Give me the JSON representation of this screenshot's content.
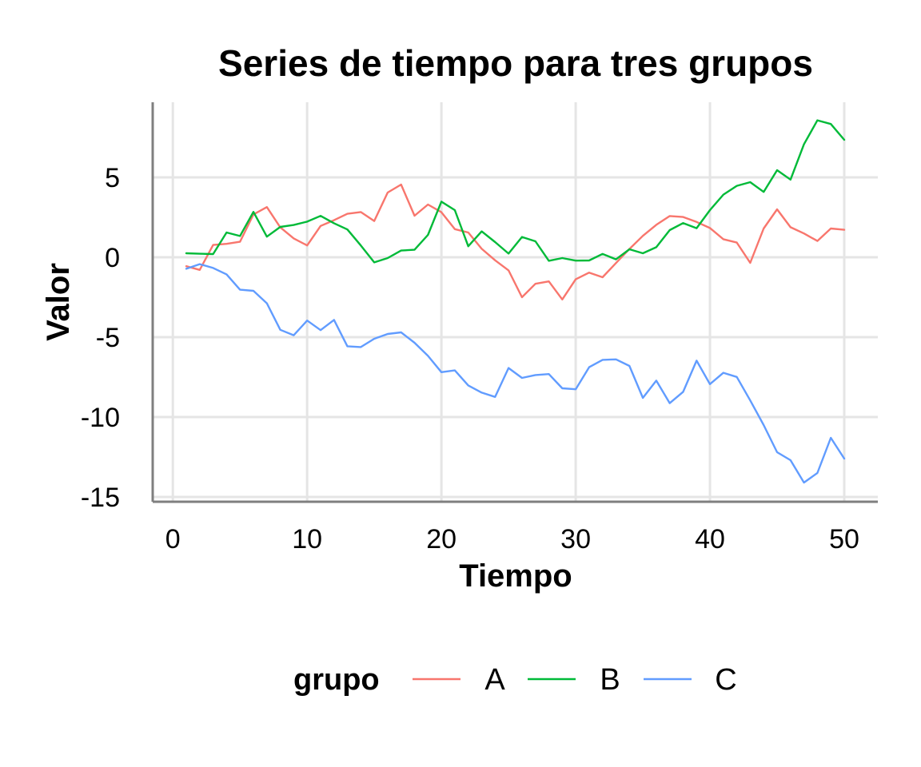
{
  "chart_data": {
    "type": "line",
    "title": "Series de tiempo para tres grupos",
    "xlabel": "Tiempo",
    "ylabel": "Valor",
    "xlim": [
      -1.5,
      52.5
    ],
    "ylim": [
      -15.3,
      9.7
    ],
    "x_ticks": [
      0,
      10,
      20,
      30,
      40,
      50
    ],
    "x_tick_labels": [
      "0",
      "10",
      "20",
      "30",
      "40",
      "50"
    ],
    "y_ticks": [
      5,
      0,
      -5,
      -10,
      -15
    ],
    "y_tick_labels": [
      "5",
      "0",
      "-5",
      "-10",
      "-15"
    ],
    "grid": true,
    "legend": {
      "title": "grupo",
      "placement": "bottom"
    },
    "x": [
      1,
      2,
      3,
      4,
      5,
      6,
      7,
      8,
      9,
      10,
      11,
      12,
      13,
      14,
      15,
      16,
      17,
      18,
      19,
      20,
      21,
      22,
      23,
      24,
      25,
      26,
      27,
      28,
      29,
      30,
      31,
      32,
      33,
      34,
      35,
      36,
      37,
      38,
      39,
      40,
      41,
      42,
      43,
      44,
      45,
      46,
      47,
      48,
      49,
      50
    ],
    "series": [
      {
        "name": "A",
        "color": "#F8766D",
        "values": [
          -0.56,
          -0.79,
          0.77,
          0.84,
          0.97,
          2.68,
          3.14,
          1.87,
          1.18,
          0.74,
          1.96,
          2.32,
          2.72,
          2.83,
          2.27,
          4.05,
          4.55,
          2.6,
          3.3,
          2.82,
          1.76,
          1.55,
          0.53,
          -0.19,
          -0.82,
          -2.5,
          -1.66,
          -1.51,
          -2.64,
          -1.38,
          -0.96,
          -1.25,
          -0.36,
          0.52,
          1.34,
          2.03,
          2.58,
          2.52,
          2.21,
          1.83,
          1.13,
          0.92,
          -0.35,
          1.8,
          3.0,
          1.88,
          1.49,
          1.02,
          1.8,
          1.72
        ]
      },
      {
        "name": "B",
        "color": "#00BA38",
        "values": [
          0.25,
          0.22,
          0.2,
          1.55,
          1.33,
          2.84,
          1.29,
          1.9,
          2.02,
          2.23,
          2.59,
          2.13,
          1.74,
          0.74,
          -0.32,
          -0.05,
          0.42,
          0.47,
          1.4,
          3.48,
          2.95,
          0.69,
          1.62,
          0.95,
          0.23,
          1.27,
          1.0,
          -0.22,
          -0.05,
          -0.21,
          -0.2,
          0.21,
          -0.13,
          0.5,
          0.25,
          0.63,
          1.7,
          2.14,
          1.82,
          2.95,
          3.92,
          4.47,
          4.7,
          4.09,
          5.45,
          4.86,
          7.07,
          8.57,
          8.34,
          7.35
        ]
      },
      {
        "name": "C",
        "color": "#619CFF",
        "values": [
          -0.72,
          -0.43,
          -0.67,
          -1.07,
          -2.03,
          -2.1,
          -2.88,
          -4.54,
          -4.88,
          -3.96,
          -4.56,
          -3.92,
          -5.57,
          -5.62,
          -5.1,
          -4.8,
          -4.7,
          -5.35,
          -6.17,
          -7.19,
          -7.08,
          -8.02,
          -8.47,
          -8.74,
          -6.93,
          -7.55,
          -7.37,
          -7.31,
          -8.2,
          -8.26,
          -6.88,
          -6.42,
          -6.39,
          -6.8,
          -8.8,
          -7.72,
          -9.13,
          -8.42,
          -6.47,
          -7.94,
          -7.23,
          -7.49,
          -8.96,
          -10.5,
          -12.2,
          -12.7,
          -14.1,
          -13.5,
          -11.3,
          -12.6
        ]
      }
    ]
  }
}
